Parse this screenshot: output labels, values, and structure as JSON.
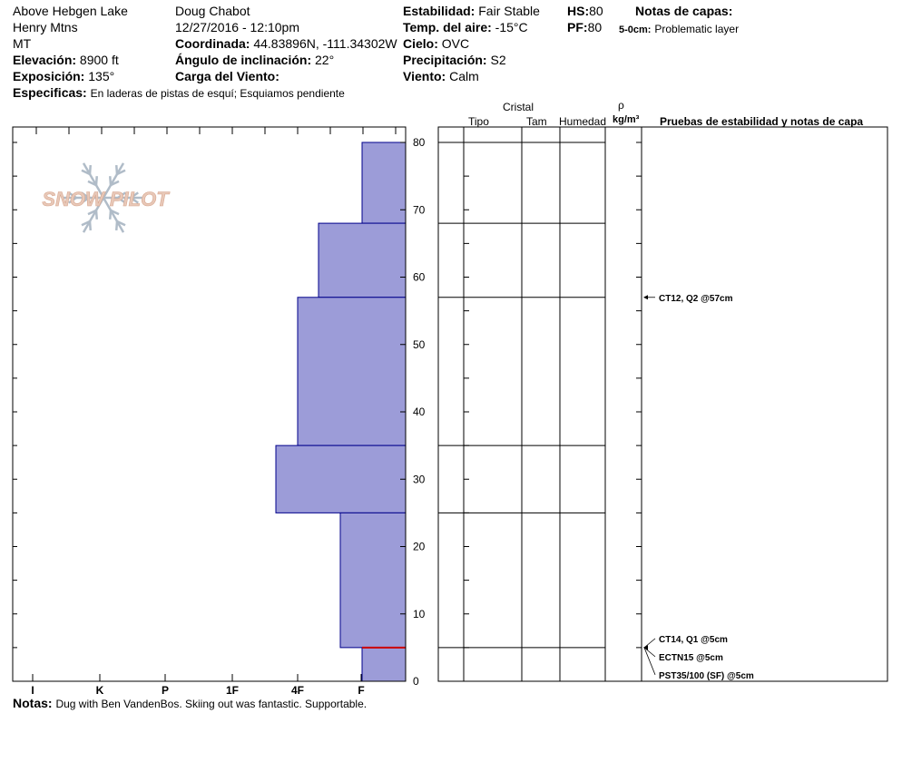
{
  "header": {
    "location": "Above Hebgen Lake",
    "range": "Henry Mtns",
    "state": "MT",
    "elevation_label": "Elevación:",
    "elevation_value": "8900 ft",
    "aspect_label": "Exposición:",
    "aspect_value": "135°",
    "specifics_label": "Especificas:",
    "specifics_value": "En laderas de pistas de esquí; Esquiamos pendiente",
    "observer": "Doug Chabot",
    "datetime": "12/27/2016 - 12:10pm",
    "coord_label": "Coordinada:",
    "coord_value": "44.83896N, -111.34302W",
    "slope_label": "Ángulo de inclinación:",
    "slope_value": "22°",
    "wind_load_label": "Carga del Viento:",
    "wind_load_value": "",
    "stability_label": "Estabilidad:",
    "stability_value": "Fair Stable",
    "air_temp_label": "Temp. del aire:",
    "air_temp_value": "-15°C",
    "sky_label": "Cielo:",
    "sky_value": "OVC",
    "precip_label": "Precipitación:",
    "precip_value": "S2",
    "wind_label": "Viento:",
    "wind_value": "Calm",
    "hs_label": "HS:",
    "hs_value": "80",
    "pf_label": "PF:",
    "pf_value": "80",
    "layer_notes_title": "Notas de capas:",
    "layer_notes": [
      {
        "range": "5-0cm:",
        "text": "Problematic layer"
      }
    ]
  },
  "logo": {
    "text": "SNOW PILOT"
  },
  "columns": {
    "cristal": "Cristal",
    "tipo": "Tipo",
    "tam": "Tam",
    "humedad": "Humedad",
    "rho": "ρ",
    "density_unit": "kg/m³",
    "tests": "Pruebas de estabilidad y notas de capa"
  },
  "tests": [
    {
      "label": "CT12, Q2 @57cm",
      "depth": 57
    },
    {
      "label": "CT14, Q1 @5cm",
      "depth": 5
    },
    {
      "label": "ECTN15 @5cm",
      "depth": 5
    },
    {
      "label": "PST35/100 (SF) @5cm",
      "depth": 5
    }
  ],
  "notes_label": "Notas:",
  "notes_value": "Dug with Ben VandenBos. Skiing out was fantastic. Supportable.",
  "colors": {
    "hardness_fill": "#9c9cd8",
    "hardness_stroke": "#00008b",
    "weak_layer": "#cc0000",
    "logo_text": "#e8c8b8",
    "logo_flake": "#b0bcc8"
  },
  "chart_data": {
    "type": "bar",
    "orientation": "horizontal",
    "x_categories": [
      "I",
      "K",
      "P",
      "1F",
      "4F",
      "F"
    ],
    "y_ticks": [
      0,
      10,
      20,
      30,
      40,
      50,
      60,
      70,
      80
    ],
    "ylim": [
      0,
      80
    ],
    "layers": [
      {
        "bottom": 68,
        "top": 80,
        "hardness": "F"
      },
      {
        "bottom": 57,
        "top": 68,
        "hardness": "4F-"
      },
      {
        "bottom": 35,
        "top": 57,
        "hardness": "4F"
      },
      {
        "bottom": 25,
        "top": 35,
        "hardness": "4F+"
      },
      {
        "bottom": 5,
        "top": 25,
        "hardness": "F+"
      },
      {
        "bottom": 0,
        "top": 5,
        "hardness": "F"
      }
    ],
    "weak_layer_depth": 5
  }
}
